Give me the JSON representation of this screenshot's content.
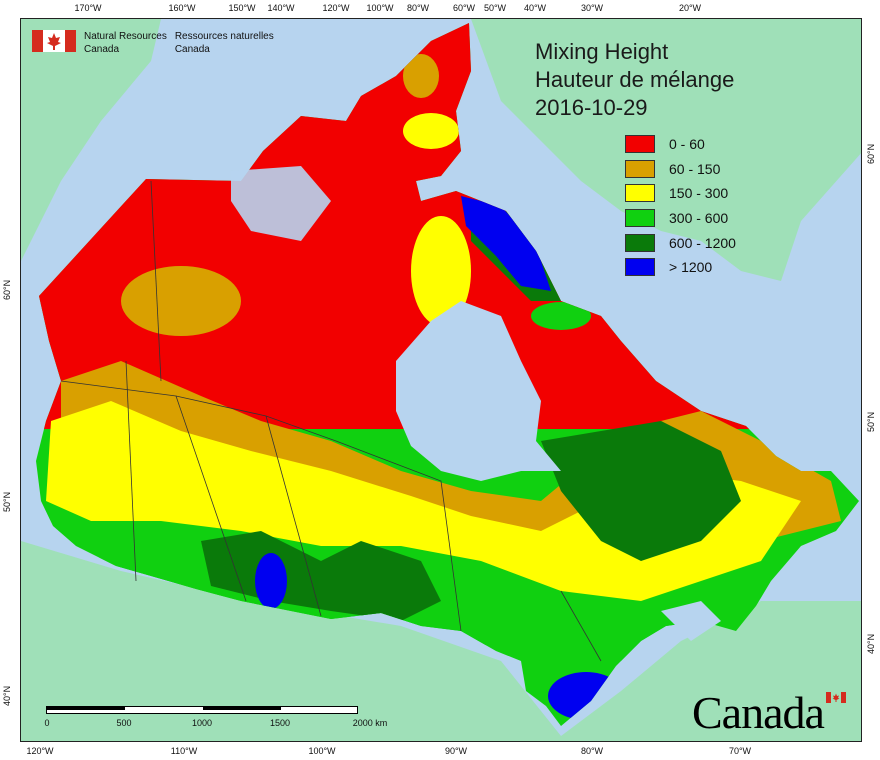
{
  "map": {
    "title_en": "Mixing Height",
    "title_fr": "Hauteur de mélange",
    "date": "2016-10-29",
    "agency_en_line1": "Natural Resources",
    "agency_en_line2": "Canada",
    "agency_fr_line1": "Ressources naturelles",
    "agency_fr_line2": "Canada",
    "wordmark": "Canada",
    "colors": {
      "ocean": "#b7d4ef",
      "land_other": "#9fe0b8",
      "border": "#333333"
    }
  },
  "legend": [
    {
      "label": "0 - 60",
      "color": "#f20000"
    },
    {
      "label": "60 - 150",
      "color": "#d9a000"
    },
    {
      "label": "150 - 300",
      "color": "#ffff00"
    },
    {
      "label": "300 - 600",
      "color": "#10d010"
    },
    {
      "label": "600 - 1200",
      "color": "#0a7a0a"
    },
    {
      "label": "> 1200",
      "color": "#0000f0"
    }
  ],
  "graticule": {
    "top_labels": [
      "170°W",
      "160°W",
      "150°W",
      "140°W",
      "120°W",
      "100°W",
      "80°W",
      "60°W",
      "50°W",
      "40°W",
      "30°W",
      "20°W"
    ],
    "bottom_labels": [
      "120°W",
      "110°W",
      "100°W",
      "90°W",
      "80°W",
      "70°W"
    ],
    "left_labels": [
      "60°N",
      "50°N",
      "40°N"
    ],
    "right_labels": [
      "60°N",
      "50°N",
      "40°N"
    ]
  },
  "scalebar": {
    "labels": [
      "0",
      "500",
      "1000",
      "1500",
      "2000  km"
    ]
  }
}
